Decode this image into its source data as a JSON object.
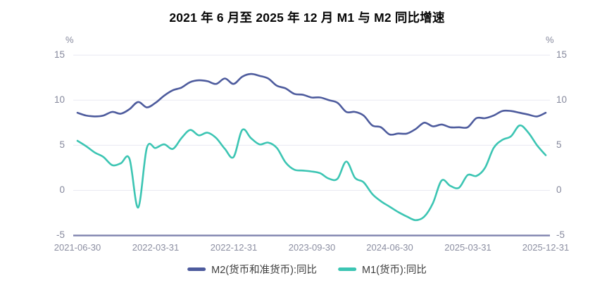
{
  "title": "2021 年 6 月至 2025 年 12 月 M1 与 M2 同比增速",
  "yaxis": {
    "unit": "%",
    "labels": [
      "15",
      "10",
      "5",
      "0",
      "-5"
    ]
  },
  "legend": {
    "m2_label": "M2(货币和准货币):同比",
    "m1_label": "M1(货币):同比"
  },
  "colors": {
    "m2_line": "#4d5b9d",
    "m1_line": "#3cc5b3",
    "grid": "#e9e9f2",
    "axis_line": "#7e82ae",
    "tick_text": "#85889c"
  },
  "chart_data": {
    "type": "line",
    "title": "2021 年 6 月至 2025 年 12 月 M1 与 M2 同比增速",
    "y_unit": "%",
    "ylim": [
      -5,
      15
    ],
    "y_tick_values": [
      15,
      10,
      5,
      0,
      -5
    ],
    "axis_line_value": -5,
    "grid": true,
    "legend_position": "bottom",
    "x_frequency": "monthly",
    "x_range": [
      "2021-06-30",
      "2025-12-31"
    ],
    "x_tick_labels": [
      "2021-06-30",
      "2022-03-31",
      "2022-12-31",
      "2023-09-30",
      "2024-06-30",
      "2025-03-31",
      "2025-12-31"
    ],
    "series": [
      {
        "name": "M2(货币和准货币):同比",
        "color": "#4d5b9d",
        "values": [
          8.6,
          8.3,
          8.2,
          8.3,
          8.7,
          8.5,
          9.0,
          9.8,
          9.2,
          9.7,
          10.5,
          11.1,
          11.4,
          12.0,
          12.2,
          12.1,
          11.8,
          12.4,
          11.8,
          12.6,
          12.9,
          12.7,
          12.4,
          11.6,
          11.3,
          10.7,
          10.6,
          10.3,
          10.3,
          10.0,
          9.7,
          8.7,
          8.7,
          8.3,
          7.2,
          7.0,
          6.2,
          6.3,
          6.3,
          6.8,
          7.5,
          7.1,
          7.3,
          7.0,
          7.0,
          7.0,
          8.0,
          8.0,
          8.3,
          8.8,
          8.8,
          8.6,
          8.4,
          8.2,
          8.6
        ]
      },
      {
        "name": "M1(货币):同比",
        "color": "#3cc5b3",
        "values": [
          5.5,
          4.9,
          4.2,
          3.7,
          2.8,
          3.0,
          3.5,
          -1.9,
          4.7,
          4.7,
          5.1,
          4.6,
          5.8,
          6.7,
          6.1,
          6.4,
          5.8,
          4.6,
          3.7,
          6.7,
          5.8,
          5.1,
          5.3,
          4.7,
          3.1,
          2.3,
          2.2,
          2.1,
          1.9,
          1.3,
          1.3,
          3.2,
          1.4,
          0.9,
          -0.4,
          -1.2,
          -1.8,
          -2.4,
          -2.9,
          -3.3,
          -2.9,
          -1.4,
          1.1,
          0.5,
          0.3,
          1.7,
          1.6,
          2.5,
          4.7,
          5.6,
          6.0,
          7.2,
          6.4,
          5.0,
          3.9
        ]
      }
    ]
  }
}
